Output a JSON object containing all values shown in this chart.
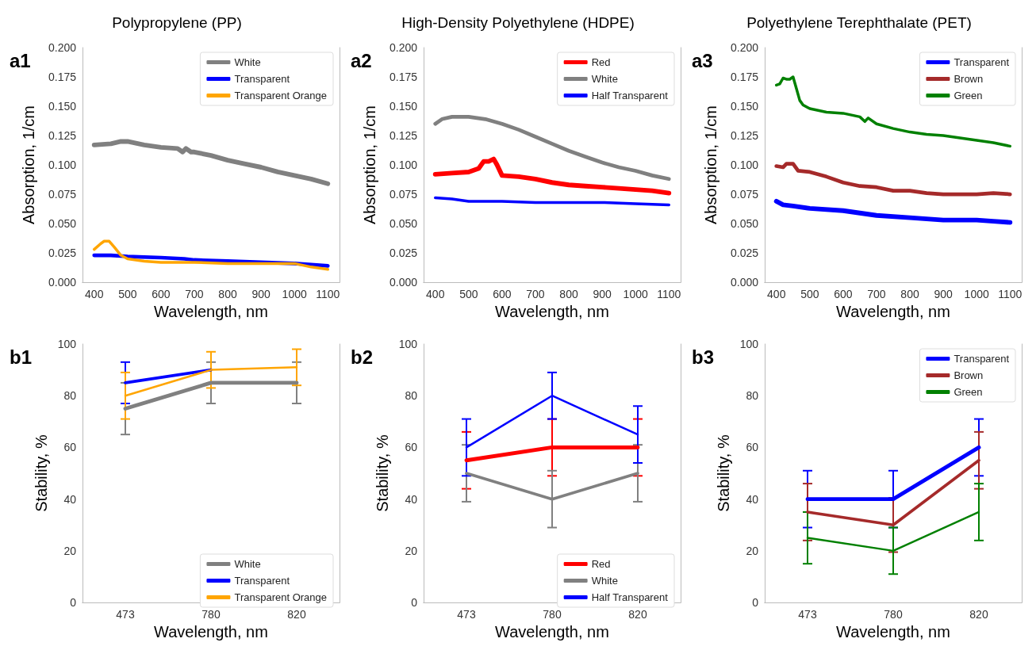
{
  "chart_data": [
    {
      "type": "line",
      "title": "Polypropylene (PP)",
      "xlabel": "Wavelength, nm",
      "ylabel": "Absorption, 1/cm",
      "annotations": [
        "a1"
      ],
      "legend": "top right",
      "xlim": [
        365,
        1135
      ],
      "xticks": [
        400,
        500,
        600,
        700,
        800,
        900,
        1000,
        1100
      ],
      "ylim": [
        0,
        0.2
      ],
      "yticks": [
        {
          "value": 0,
          "label": "0.000"
        },
        0.025,
        {
          "value": 0.05,
          "label": "0.050"
        },
        0.075,
        {
          "value": 0.1,
          "label": "0.100"
        },
        0.125,
        {
          "value": 0.15,
          "label": "0.150"
        },
        0.175,
        {
          "value": 0.2,
          "label": "0.200"
        }
      ],
      "series": [
        {
          "name": "White",
          "color": "#808080",
          "x": [
            400,
            450,
            480,
            500,
            550,
            600,
            650,
            665,
            675,
            690,
            700,
            750,
            800,
            850,
            900,
            950,
            1000,
            1050,
            1100
          ],
          "values": [
            0.117,
            0.118,
            0.12,
            0.12,
            0.117,
            0.115,
            0.114,
            0.111,
            0.114,
            0.111,
            0.111,
            0.108,
            0.104,
            0.101,
            0.098,
            0.094,
            0.091,
            0.088,
            0.084
          ]
        },
        {
          "name": "Transparent",
          "color": "#0000ff",
          "x": [
            400,
            450,
            500,
            600,
            670,
            700,
            800,
            900,
            1000,
            1050,
            1100
          ],
          "values": [
            0.023,
            0.023,
            0.022,
            0.021,
            0.02,
            0.019,
            0.018,
            0.017,
            0.016,
            0.015,
            0.014
          ]
        },
        {
          "name": "Transparent Orange",
          "color": "#ffa500",
          "x": [
            400,
            420,
            430,
            445,
            460,
            480,
            500,
            550,
            600,
            700,
            800,
            900,
            1000,
            1050,
            1100
          ],
          "values": [
            0.028,
            0.033,
            0.035,
            0.035,
            0.03,
            0.023,
            0.02,
            0.018,
            0.017,
            0.017,
            0.016,
            0.016,
            0.016,
            0.013,
            0.011
          ]
        }
      ]
    },
    {
      "type": "line",
      "title": "High-Density Polyethylene (HDPE)",
      "xlabel": "Wavelength, nm",
      "ylabel": "Absorption, 1/cm",
      "annotations": [
        "a2"
      ],
      "legend": "top right",
      "xlim": [
        365,
        1135
      ],
      "xticks": [
        400,
        500,
        600,
        700,
        800,
        900,
        1000,
        1100
      ],
      "ylim": [
        0,
        0.2
      ],
      "yticks": [
        {
          "value": 0,
          "label": "0.000"
        },
        0.025,
        {
          "value": 0.05,
          "label": "0.050"
        },
        0.075,
        {
          "value": 0.1,
          "label": "0.100"
        },
        0.125,
        {
          "value": 0.15,
          "label": "0.150"
        },
        0.175,
        {
          "value": 0.2,
          "label": "0.200"
        }
      ],
      "series": [
        {
          "name": "Red",
          "color": "#ff0000",
          "x": [
            400,
            450,
            500,
            530,
            545,
            560,
            575,
            585,
            600,
            650,
            700,
            750,
            800,
            850,
            900,
            950,
            1000,
            1050,
            1100
          ],
          "values": [
            0.092,
            0.093,
            0.094,
            0.097,
            0.103,
            0.103,
            0.105,
            0.1,
            0.091,
            0.09,
            0.088,
            0.085,
            0.083,
            0.082,
            0.081,
            0.08,
            0.079,
            0.078,
            0.076
          ]
        },
        {
          "name": "White",
          "color": "#808080",
          "x": [
            400,
            420,
            450,
            500,
            550,
            600,
            650,
            700,
            750,
            800,
            850,
            900,
            950,
            1000,
            1050,
            1100
          ],
          "values": [
            0.135,
            0.139,
            0.141,
            0.141,
            0.139,
            0.135,
            0.13,
            0.124,
            0.118,
            0.112,
            0.107,
            0.102,
            0.098,
            0.095,
            0.091,
            0.088
          ]
        },
        {
          "name": "Half Transparent",
          "color": "#0000ff",
          "x": [
            400,
            450,
            500,
            600,
            700,
            800,
            900,
            1000,
            1100
          ],
          "values": [
            0.072,
            0.071,
            0.069,
            0.069,
            0.068,
            0.068,
            0.068,
            0.067,
            0.066
          ]
        }
      ]
    },
    {
      "type": "line",
      "title": "Polyethylene Terephthalate (PET)",
      "xlabel": "Wavelength, nm",
      "ylabel": "Absorption, 1/cm",
      "annotations": [
        "a3"
      ],
      "legend": "top right",
      "xlim": [
        365,
        1135
      ],
      "xticks": [
        400,
        500,
        600,
        700,
        800,
        900,
        1000,
        1100
      ],
      "ylim": [
        0,
        0.2
      ],
      "yticks": [
        {
          "value": 0,
          "label": "0.000"
        },
        0.025,
        {
          "value": 0.05,
          "label": "0.050"
        },
        0.075,
        {
          "value": 0.1,
          "label": "0.100"
        },
        0.125,
        {
          "value": 0.15,
          "label": "0.150"
        },
        0.175,
        {
          "value": 0.2,
          "label": "0.200"
        }
      ],
      "series": [
        {
          "name": "Transparent",
          "color": "#0000ff",
          "x": [
            400,
            420,
            450,
            500,
            600,
            650,
            700,
            800,
            900,
            1000,
            1050,
            1100
          ],
          "values": [
            0.069,
            0.066,
            0.065,
            0.063,
            0.061,
            0.059,
            0.057,
            0.055,
            0.053,
            0.053,
            0.052,
            0.051
          ]
        },
        {
          "name": "Brown",
          "color": "#a52a2a",
          "x": [
            400,
            420,
            430,
            450,
            465,
            500,
            550,
            600,
            650,
            700,
            750,
            800,
            850,
            900,
            1000,
            1050,
            1100
          ],
          "values": [
            0.099,
            0.098,
            0.101,
            0.101,
            0.095,
            0.094,
            0.09,
            0.085,
            0.082,
            0.081,
            0.078,
            0.078,
            0.076,
            0.075,
            0.075,
            0.076,
            0.075
          ]
        },
        {
          "name": "Green",
          "color": "#008000",
          "x": [
            400,
            410,
            420,
            430,
            440,
            450,
            460,
            470,
            480,
            500,
            550,
            600,
            650,
            665,
            675,
            700,
            750,
            800,
            850,
            900,
            950,
            1000,
            1050,
            1100
          ],
          "values": [
            0.168,
            0.169,
            0.174,
            0.173,
            0.173,
            0.175,
            0.165,
            0.155,
            0.151,
            0.148,
            0.145,
            0.144,
            0.141,
            0.137,
            0.14,
            0.135,
            0.131,
            0.128,
            0.126,
            0.125,
            0.123,
            0.121,
            0.119,
            0.116
          ]
        }
      ]
    },
    {
      "type": "line",
      "xlabel": "Wavelength, nm",
      "ylabel": "Stability, %",
      "annotations": [
        "b1"
      ],
      "legend": "bottom right",
      "categories": [
        "473",
        "780",
        "820"
      ],
      "ylim": [
        0,
        100
      ],
      "yticks": [
        0,
        20,
        40,
        60,
        80,
        100
      ],
      "series": [
        {
          "name": "White",
          "color": "#808080",
          "values": [
            75,
            85,
            85
          ],
          "errors": [
            10,
            8,
            8
          ]
        },
        {
          "name": "Transparent",
          "color": "#0000ff",
          "values": [
            85,
            90,
            null
          ],
          "errors": [
            8,
            null,
            null
          ]
        },
        {
          "name": "Transparent Orange",
          "color": "#ffa500",
          "values": [
            80,
            90,
            91
          ],
          "errors": [
            9,
            7,
            7
          ]
        }
      ]
    },
    {
      "type": "line",
      "xlabel": "Wavelength, nm",
      "ylabel": "Stability, %",
      "annotations": [
        "b2"
      ],
      "legend": "bottom right",
      "categories": [
        "473",
        "780",
        "820"
      ],
      "ylim": [
        0,
        100
      ],
      "yticks": [
        0,
        20,
        40,
        60,
        80,
        100
      ],
      "series": [
        {
          "name": "Red",
          "color": "#ff0000",
          "values": [
            55,
            60,
            60
          ],
          "errors": [
            11,
            11,
            11
          ]
        },
        {
          "name": "White",
          "color": "#808080",
          "values": [
            50,
            40,
            50
          ],
          "errors": [
            11,
            11,
            11
          ]
        },
        {
          "name": "Half Transparent",
          "color": "#0000ff",
          "values": [
            60,
            80,
            65
          ],
          "errors": [
            11,
            9,
            11
          ]
        }
      ]
    },
    {
      "type": "line",
      "xlabel": "Wavelength, nm",
      "ylabel": "Stability, %",
      "annotations": [
        "b3"
      ],
      "legend": "top right",
      "categories": [
        "473",
        "780",
        "820"
      ],
      "ylim": [
        0,
        100
      ],
      "yticks": [
        0,
        20,
        40,
        60,
        80,
        100
      ],
      "series": [
        {
          "name": "Transparent",
          "color": "#0000ff",
          "values": [
            40,
            40,
            60
          ],
          "errors": [
            11,
            11,
            11
          ]
        },
        {
          "name": "Brown",
          "color": "#a52a2a",
          "values": [
            35,
            30,
            55
          ],
          "errors": [
            11,
            10.5,
            11
          ]
        },
        {
          "name": "Green",
          "color": "#008000",
          "values": [
            25,
            20,
            35
          ],
          "errors": [
            10,
            9,
            11
          ]
        }
      ]
    }
  ]
}
